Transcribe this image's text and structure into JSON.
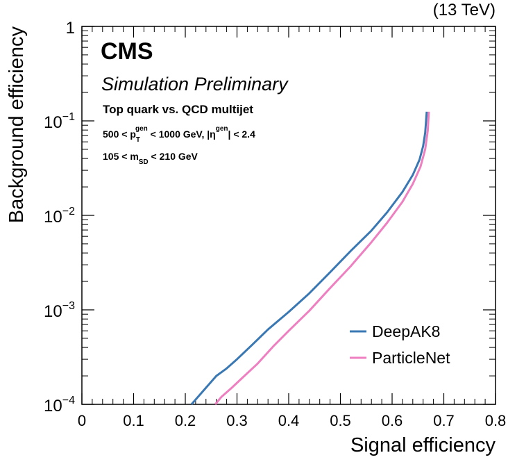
{
  "chart_data": {
    "type": "line",
    "energy_label": "(13 TeV)",
    "experiment": "CMS",
    "subtitle": "Simulation Preliminary",
    "selection": {
      "line1": "Top quark vs. QCD multijet",
      "line2": {
        "a": "500 < p",
        "sub_T": "T",
        "sup_gen": "gen",
        "b": " < 1000 GeV, |η",
        "sup_gen2": "gen",
        "c": "| < 2.4"
      },
      "line3": {
        "a": "105 < m",
        "sub_SD": "SD",
        "b": " < 210 GeV"
      }
    },
    "xlabel": "Signal efficiency",
    "ylabel": "Background efficiency",
    "xlim": [
      0,
      0.8
    ],
    "ylim": [
      0.0001,
      1
    ],
    "yscale": "log",
    "x_ticks": [
      {
        "value": 0.0,
        "label": "0"
      },
      {
        "value": 0.1,
        "label": "0.1"
      },
      {
        "value": 0.2,
        "label": "0.2"
      },
      {
        "value": 0.3,
        "label": "0.3"
      },
      {
        "value": 0.4,
        "label": "0.4"
      },
      {
        "value": 0.5,
        "label": "0.5"
      },
      {
        "value": 0.6,
        "label": "0.6"
      },
      {
        "value": 0.7,
        "label": "0.7"
      },
      {
        "value": 0.8,
        "label": "0.8"
      }
    ],
    "y_ticks": [
      {
        "value": 1,
        "base": "1",
        "exp": ""
      },
      {
        "value": 0.1,
        "base": "10",
        "exp": "−1"
      },
      {
        "value": 0.01,
        "base": "10",
        "exp": "−2"
      },
      {
        "value": 0.001,
        "base": "10",
        "exp": "−3"
      },
      {
        "value": 0.0001,
        "base": "10",
        "exp": "−4"
      }
    ],
    "legend_position": "bottom-right",
    "series": [
      {
        "name": "DeepAK8",
        "color": "#3a78b4",
        "x": [
          0.212,
          0.24,
          0.26,
          0.28,
          0.3,
          0.33,
          0.36,
          0.4,
          0.44,
          0.48,
          0.52,
          0.56,
          0.59,
          0.62,
          0.64,
          0.653,
          0.66,
          0.664,
          0.667
        ],
        "y": [
          0.0001,
          0.00015,
          0.0002,
          0.00024,
          0.0003,
          0.00043,
          0.00062,
          0.00095,
          0.0015,
          0.0025,
          0.0042,
          0.0069,
          0.0107,
          0.0177,
          0.0268,
          0.0388,
          0.054,
          0.075,
          0.125
        ]
      },
      {
        "name": "ParticleNet",
        "color": "#ee7fc0",
        "x": [
          0.258,
          0.27,
          0.29,
          0.31,
          0.34,
          0.37,
          0.4,
          0.44,
          0.48,
          0.52,
          0.56,
          0.59,
          0.62,
          0.64,
          0.655,
          0.664,
          0.669,
          0.671
        ],
        "y": [
          0.0001,
          0.00012,
          0.00015,
          0.00019,
          0.00027,
          0.00041,
          0.0006,
          0.00098,
          0.0017,
          0.0029,
          0.0052,
          0.0083,
          0.0139,
          0.0215,
          0.0329,
          0.05,
          0.079,
          0.125
        ]
      }
    ]
  }
}
